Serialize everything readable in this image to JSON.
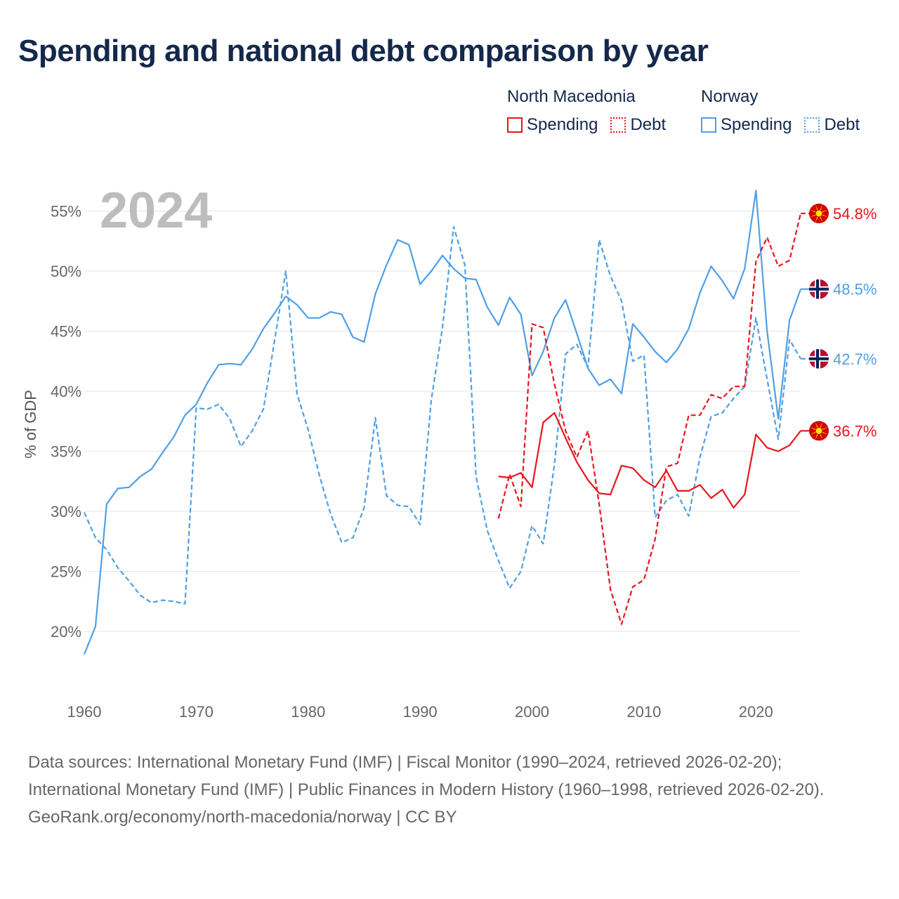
{
  "title": "Spending and national debt comparison by year",
  "legend": {
    "groups": [
      {
        "name": "North Macedonia",
        "color": "#e8161d",
        "spending_label": "Spending",
        "debt_label": "Debt"
      },
      {
        "name": "Norway",
        "color": "#4f9fe6",
        "spending_label": "Spending",
        "debt_label": "Debt"
      }
    ]
  },
  "year_label": "2024",
  "chart_data": {
    "type": "line",
    "title": "Spending and national debt comparison by year",
    "xlabel": "",
    "ylabel": "% of GDP",
    "xlim": [
      1960,
      2024
    ],
    "ylim": [
      16,
      58
    ],
    "xticks": [
      1960,
      1970,
      1980,
      1990,
      2000,
      2010,
      2020
    ],
    "yticks": [
      20,
      25,
      30,
      35,
      40,
      45,
      50,
      55
    ],
    "ytick_labels": [
      "20%",
      "25%",
      "30%",
      "35%",
      "40%",
      "45%",
      "50%",
      "55%"
    ],
    "xtick_labels": [
      "1960",
      "1970",
      "1980",
      "1990",
      "2000",
      "2010",
      "2020"
    ],
    "series": [
      {
        "name": "Norway Spending",
        "country": "Norway",
        "measure": "Spending",
        "color": "#4f9fe6",
        "style": "solid",
        "x_start": 1960,
        "values": [
          18.1,
          20.4,
          30.6,
          31.9,
          32.0,
          32.9,
          33.5,
          34.9,
          36.2,
          38.0,
          38.9,
          40.7,
          42.2,
          42.3,
          42.2,
          43.5,
          45.2,
          46.5,
          47.9,
          47.2,
          46.1,
          46.1,
          46.6,
          46.4,
          44.5,
          44.1,
          48.1,
          50.5,
          52.6,
          52.2,
          48.9,
          50.0,
          51.3,
          50.2,
          49.4,
          49.3,
          47.0,
          45.5,
          47.8,
          46.4,
          41.3,
          43.3,
          46.1,
          47.6,
          44.8,
          41.9,
          40.5,
          41.0,
          39.8,
          45.6,
          44.5,
          43.3,
          42.4,
          43.5,
          45.2,
          48.2,
          50.4,
          49.2,
          47.7,
          50.2,
          56.7,
          45.0,
          37.7,
          45.9,
          48.5
        ],
        "end_label": "48.5%"
      },
      {
        "name": "Norway Debt",
        "country": "Norway",
        "measure": "Debt",
        "color": "#4f9fe6",
        "style": "dashed",
        "x_start": 1960,
        "values": [
          29.9,
          27.8,
          26.8,
          25.3,
          24.2,
          23.0,
          22.4,
          22.6,
          22.5,
          22.3,
          38.6,
          38.5,
          38.9,
          37.7,
          35.4,
          36.7,
          38.5,
          44.2,
          50.0,
          39.8,
          36.8,
          33.0,
          29.8,
          27.4,
          27.8,
          30.3,
          37.8,
          31.3,
          30.5,
          30.4,
          28.9,
          39.3,
          45.3,
          53.7,
          50.5,
          32.9,
          28.4,
          25.9,
          23.6,
          25.0,
          28.8,
          27.3,
          33.9,
          43.1,
          43.9,
          42.0,
          52.6,
          49.6,
          47.5,
          42.5,
          43.0,
          29.5,
          30.9,
          31.4,
          29.6,
          34.5,
          37.9,
          38.2,
          39.4,
          40.4,
          46.1,
          41.0,
          36.0,
          44.3,
          42.7
        ],
        "end_label": "42.7%"
      },
      {
        "name": "North Macedonia Spending",
        "country": "North Macedonia",
        "measure": "Spending",
        "color": "#e8161d",
        "style": "solid",
        "x_start": 1997,
        "values": [
          32.9,
          32.8,
          33.2,
          32.0,
          37.4,
          38.2,
          36.1,
          34.1,
          32.6,
          31.5,
          31.4,
          33.8,
          33.6,
          32.6,
          32.0,
          33.4,
          31.7,
          31.7,
          32.2,
          31.1,
          31.8,
          30.3,
          31.4,
          36.4,
          35.3,
          35.0,
          35.5,
          36.7
        ],
        "end_label": "36.7%"
      },
      {
        "name": "North Macedonia Debt",
        "country": "North Macedonia",
        "measure": "Debt",
        "color": "#e8161d",
        "style": "dashed",
        "x_start": 1997,
        "values": [
          29.4,
          33.1,
          30.4,
          45.6,
          45.3,
          40.6,
          36.7,
          34.5,
          36.7,
          30.6,
          23.5,
          20.6,
          23.7,
          24.3,
          27.7,
          33.7,
          34.0,
          38.0,
          38.0,
          39.7,
          39.4,
          40.4,
          40.4,
          50.8,
          52.8,
          50.4,
          50.9,
          54.8
        ],
        "end_label": "54.8%"
      }
    ]
  },
  "footer": {
    "sources": "Data sources: International Monetary Fund (IMF) | Fiscal Monitor (1990–2024, retrieved 2026-02-20); International Monetary Fund (IMF) | Public Finances in Modern History (1960–1998, retrieved 2026-02-20).",
    "credit": "GeoRank.org/economy/north-macedonia/norway | CC BY"
  },
  "flags": {
    "north_macedonia": "north-macedonia-flag-icon",
    "norway": "norway-flag-icon"
  }
}
